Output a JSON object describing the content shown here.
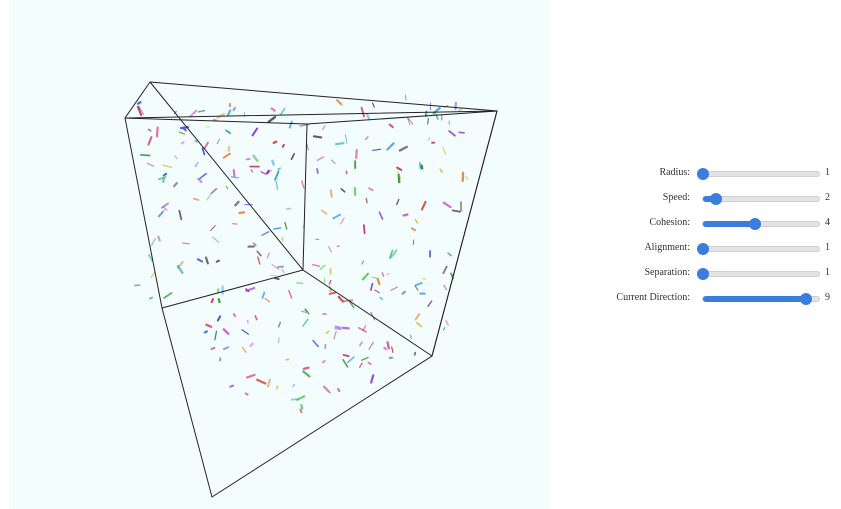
{
  "scene": {
    "background": "#f4fdfe",
    "frame_color": "#222222",
    "boid_colors": [
      "#e23b3b",
      "#2f8f2f",
      "#3b5bd9",
      "#d45ad4",
      "#33b5b5",
      "#c8c83a",
      "#555555",
      "#e8833a",
      "#8a3bd9",
      "#66cc66",
      "#cc3366",
      "#3a9ae8"
    ]
  },
  "controls": {
    "accent": "#3b7ddd",
    "sliders": [
      {
        "label": "Radius:",
        "value": "1",
        "level": 0.0
      },
      {
        "label": "Speed:",
        "value": "2",
        "level": 0.111
      },
      {
        "label": "Cohesion:",
        "value": "4",
        "level": 0.444
      },
      {
        "label": "Alignment:",
        "value": "1",
        "level": 0.0
      },
      {
        "label": "Separation:",
        "value": "1",
        "level": 0.0
      },
      {
        "label": "Current Direction:",
        "value": "9",
        "level": 0.889
      }
    ]
  }
}
